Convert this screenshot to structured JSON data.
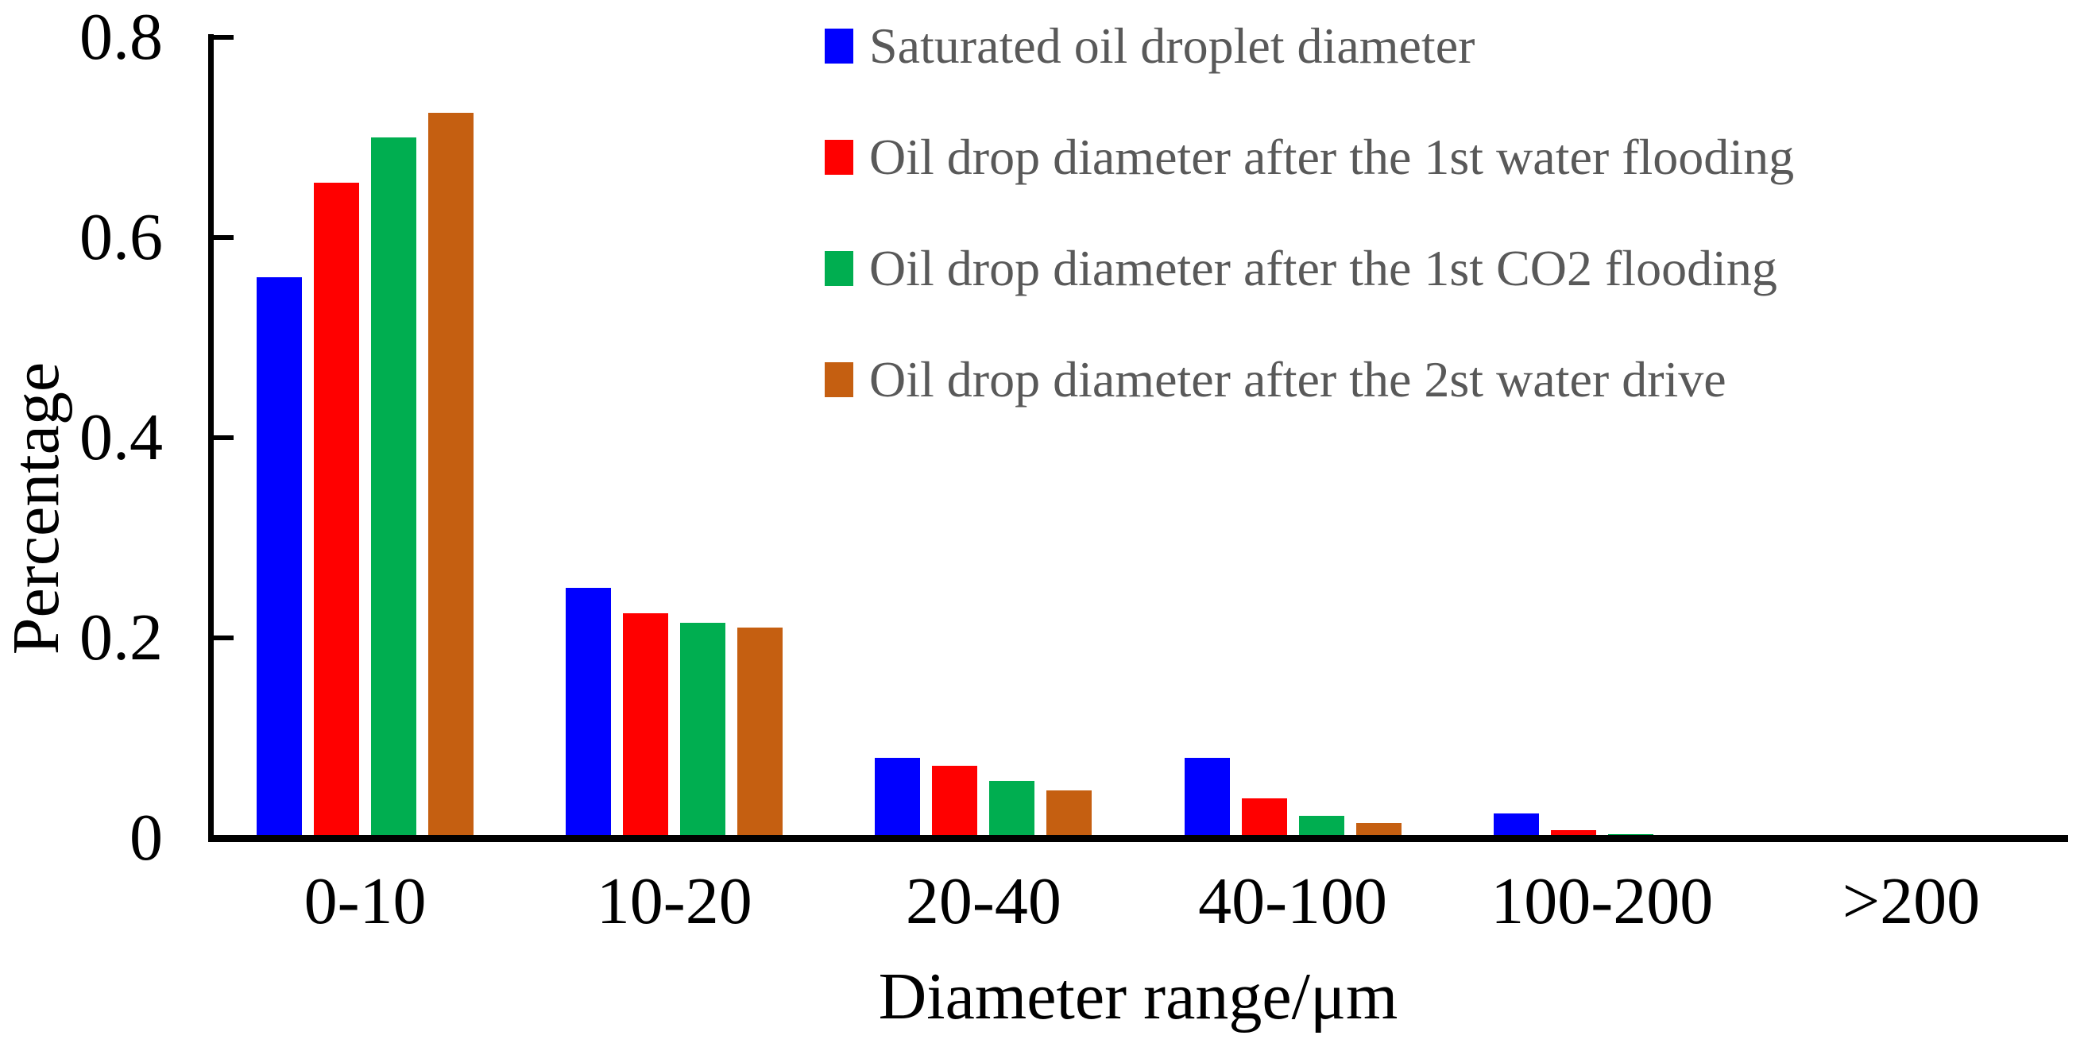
{
  "chart_data": {
    "type": "bar",
    "title": "",
    "xlabel": "Diameter range/μm",
    "ylabel": "Percentage",
    "categories": [
      "0-10",
      "10-20",
      "20-40",
      "40-100",
      "100-200",
      ">200"
    ],
    "series": [
      {
        "name": "Saturated oil droplet diameter",
        "color": "#0000FF",
        "values": [
          0.56,
          0.25,
          0.08,
          0.08,
          0.025,
          0
        ]
      },
      {
        "name": "Oil drop diameter after the 1st water flooding",
        "color": "#FF0000",
        "values": [
          0.655,
          0.225,
          0.072,
          0.04,
          0.008,
          0
        ]
      },
      {
        "name": "Oil drop diameter after the 1st CO2 flooding",
        "color": "#00AE50",
        "values": [
          0.7,
          0.215,
          0.057,
          0.022,
          0.004,
          0
        ]
      },
      {
        "name": "Oil drop diameter after the 2st water drive",
        "color": "#C55F11",
        "values": [
          0.725,
          0.21,
          0.048,
          0.015,
          0,
          0
        ]
      }
    ],
    "ylim": [
      0,
      0.8
    ],
    "yticks": [
      0,
      0.2,
      0.4,
      0.6,
      0.8
    ],
    "ytick_labels": [
      "0",
      "0.2",
      "0.4",
      "0.6",
      "0.8"
    ],
    "grid": false,
    "legend_position": "upper-right-inside",
    "legend_text_color": "#595959",
    "axis_color": "#000000",
    "background_color": "#FFFFFF"
  }
}
